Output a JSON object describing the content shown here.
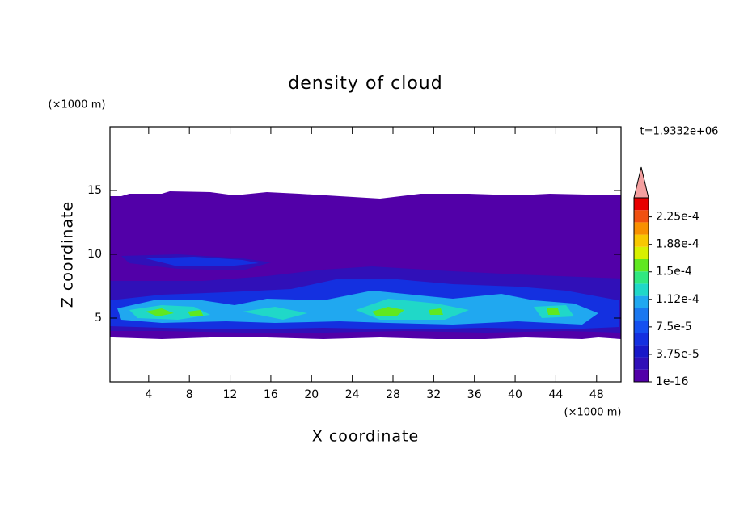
{
  "chart_data": {
    "type": "contour",
    "title": "density of cloud",
    "x_label": "X coordinate",
    "y_label": "Z coordinate",
    "x_unit": "(×1000 m)",
    "y_unit": "(×1000 m)",
    "time_label": "t=1.9332e+06",
    "xlim": [
      0.2,
      50.4
    ],
    "xticks": [
      4,
      8,
      12,
      16,
      20,
      24,
      28,
      32,
      36,
      40,
      44,
      48
    ],
    "ylim": [
      0,
      20
    ],
    "yticks": [
      5,
      10,
      15
    ],
    "colorbar": {
      "lim": [
        0,
        0.000251
      ],
      "ticks": [
        {
          "value": 1e-16,
          "label": "1e-16"
        },
        {
          "value": 3.75e-05,
          "label": "3.75e-5"
        },
        {
          "value": 7.5e-05,
          "label": "7.5e-5"
        },
        {
          "value": 0.0001125,
          "label": "1.12e-4"
        },
        {
          "value": 0.00015,
          "label": "1.5e-4"
        },
        {
          "value": 0.0001875,
          "label": "1.88e-4"
        },
        {
          "value": 0.000225,
          "label": "2.25e-4"
        }
      ],
      "colors": [
        "#5200a8",
        "#3010b8",
        "#1818c8",
        "#1430e0",
        "#1450f0",
        "#1a78f0",
        "#20a8f0",
        "#20d8c8",
        "#30e880",
        "#60e820",
        "#d8f000",
        "#f8c800",
        "#f89000",
        "#f05010",
        "#e80000"
      ],
      "extend_color": "#f4a0a0"
    }
  }
}
